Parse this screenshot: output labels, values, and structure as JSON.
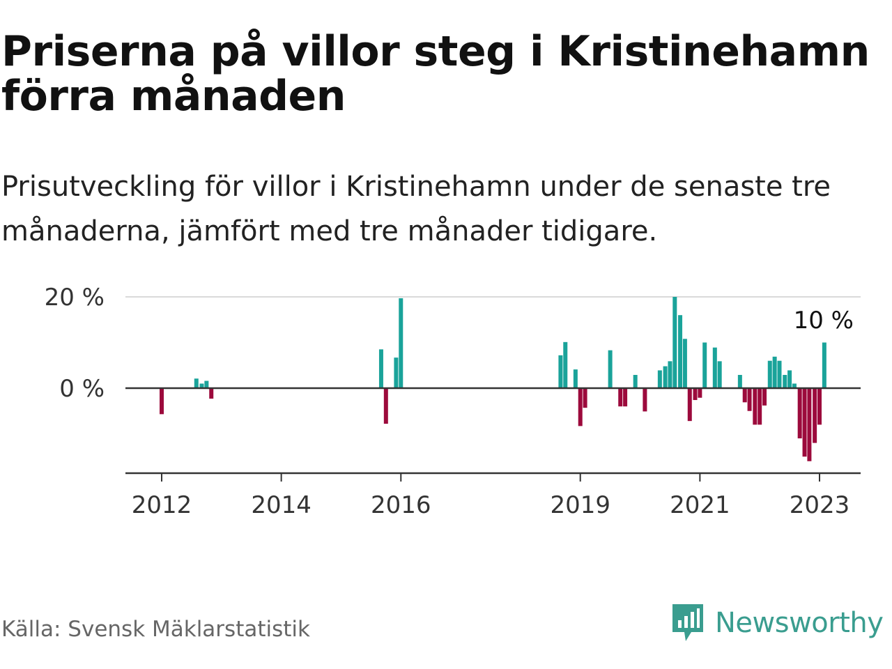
{
  "header": {
    "title": "Priserna på villor steg i Kristinehamn förra månaden",
    "subtitle": "Prisutveckling för villor i Kristinehamn under de senaste tre månaderna, jämfört med tre månader tidigare."
  },
  "footer": {
    "source": "Källa: Svensk Mäklarstatistik",
    "brand": "Newsworthy",
    "brand_icon": "chart-speech-bubble-icon"
  },
  "colors": {
    "positive": "#1aa39a",
    "negative": "#9c0a3c",
    "brand": "#3a9d8f"
  },
  "chart_data": {
    "type": "bar",
    "title": "Priserna på villor steg i Kristinehamn förra månaden",
    "xlabel": "",
    "ylabel": "",
    "x_ticks": [
      {
        "label": "2012",
        "value": 2012.0
      },
      {
        "label": "2014",
        "value": 2014.0
      },
      {
        "label": "2016",
        "value": 2016.0
      },
      {
        "label": "2019",
        "value": 2019.0
      },
      {
        "label": "2021",
        "value": 2021.0
      },
      {
        "label": "2023",
        "value": 2023.0
      }
    ],
    "y_ticks": [
      {
        "label": "0 %",
        "value": 0
      },
      {
        "label": "20 %",
        "value": 20
      }
    ],
    "ylim": [
      -18,
      20
    ],
    "xlim": [
      2011.4,
      2023.7
    ],
    "grid": true,
    "legend": "none",
    "annotation": {
      "text": "10 %",
      "x": 2023.0,
      "value": 10
    },
    "bars": [
      {
        "x": 2012.0,
        "value": -5.7
      },
      {
        "x": 2012.58,
        "value": 2.1
      },
      {
        "x": 2012.67,
        "value": 1.0
      },
      {
        "x": 2012.75,
        "value": 1.6
      },
      {
        "x": 2012.83,
        "value": -2.3
      },
      {
        "x": 2015.67,
        "value": 8.5
      },
      {
        "x": 2015.75,
        "value": -7.8
      },
      {
        "x": 2015.92,
        "value": 6.7
      },
      {
        "x": 2016.0,
        "value": 19.7
      },
      {
        "x": 2018.67,
        "value": 7.2
      },
      {
        "x": 2018.75,
        "value": 10.1
      },
      {
        "x": 2018.92,
        "value": 4.1
      },
      {
        "x": 2019.0,
        "value": -8.3
      },
      {
        "x": 2019.08,
        "value": -4.3
      },
      {
        "x": 2019.5,
        "value": 8.3
      },
      {
        "x": 2019.67,
        "value": -4.0
      },
      {
        "x": 2019.75,
        "value": -4.0
      },
      {
        "x": 2019.92,
        "value": 2.9
      },
      {
        "x": 2020.08,
        "value": -5.1
      },
      {
        "x": 2020.33,
        "value": 3.9
      },
      {
        "x": 2020.42,
        "value": 4.8
      },
      {
        "x": 2020.5,
        "value": 5.9
      },
      {
        "x": 2020.58,
        "value": 20.0
      },
      {
        "x": 2020.67,
        "value": 16.0
      },
      {
        "x": 2020.75,
        "value": 10.8
      },
      {
        "x": 2020.83,
        "value": -7.2
      },
      {
        "x": 2020.92,
        "value": -2.6
      },
      {
        "x": 2021.0,
        "value": -2.1
      },
      {
        "x": 2021.08,
        "value": 10.0
      },
      {
        "x": 2021.25,
        "value": 8.9
      },
      {
        "x": 2021.33,
        "value": 5.9
      },
      {
        "x": 2021.67,
        "value": 2.9
      },
      {
        "x": 2021.75,
        "value": -3.1
      },
      {
        "x": 2021.83,
        "value": -5.0
      },
      {
        "x": 2021.92,
        "value": -8.0
      },
      {
        "x": 2022.0,
        "value": -8.0
      },
      {
        "x": 2022.08,
        "value": -3.8
      },
      {
        "x": 2022.17,
        "value": 6.0
      },
      {
        "x": 2022.25,
        "value": 6.9
      },
      {
        "x": 2022.33,
        "value": 6.0
      },
      {
        "x": 2022.42,
        "value": 2.9
      },
      {
        "x": 2022.5,
        "value": 3.9
      },
      {
        "x": 2022.58,
        "value": 1.0
      },
      {
        "x": 2022.67,
        "value": -11.0
      },
      {
        "x": 2022.75,
        "value": -15.0
      },
      {
        "x": 2022.83,
        "value": -16.0
      },
      {
        "x": 2022.92,
        "value": -12.0
      },
      {
        "x": 2023.0,
        "value": -8.0
      },
      {
        "x": 2023.08,
        "value": 10.0
      }
    ]
  }
}
